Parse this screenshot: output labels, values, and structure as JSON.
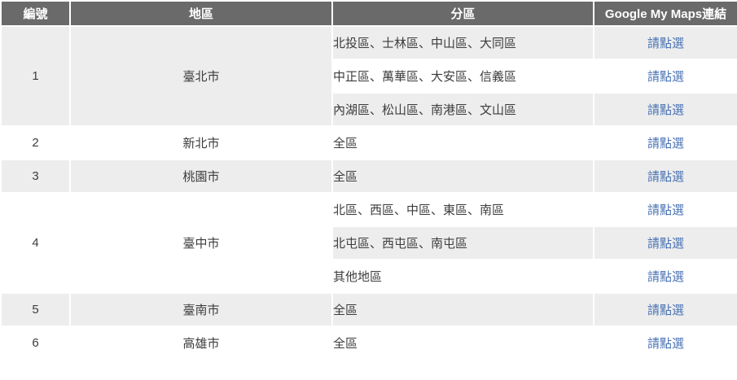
{
  "colors": {
    "header_bg": "#6a6a6a",
    "header_text": "#ffffff",
    "row_alt_bg": "#ededed",
    "row_bg": "#ffffff",
    "body_text": "#3c3c3c",
    "link_blue": "#4a73b4"
  },
  "table": {
    "headers": [
      "編號",
      "地區",
      "分區",
      "Google My Maps連結"
    ],
    "link_label": "請點選",
    "groups": [
      {
        "number": "1",
        "region": "臺北市",
        "subrows": [
          {
            "districts": "北投區、士林區、中山區、大同區",
            "link": "請點選"
          },
          {
            "districts": "中正區、萬華區、大安區、信義區",
            "link": "請點選"
          },
          {
            "districts": "內湖區、松山區、南港區、文山區",
            "link": "請點選"
          }
        ]
      },
      {
        "number": "2",
        "region": "新北市",
        "subrows": [
          {
            "districts": "全區",
            "link": "請點選"
          }
        ]
      },
      {
        "number": "3",
        "region": "桃園市",
        "subrows": [
          {
            "districts": "全區",
            "link": "請點選"
          }
        ]
      },
      {
        "number": "4",
        "region": "臺中市",
        "subrows": [
          {
            "districts": "北區、西區、中區、東區、南區",
            "link": "請點選"
          },
          {
            "districts": "北屯區、西屯區、南屯區",
            "link": "請點選"
          },
          {
            "districts": "其他地區",
            "link": "請點選"
          }
        ]
      },
      {
        "number": "5",
        "region": "臺南市",
        "subrows": [
          {
            "districts": "全區",
            "link": "請點選"
          }
        ]
      },
      {
        "number": "6",
        "region": "高雄市",
        "subrows": [
          {
            "districts": "全區",
            "link": "請點選"
          }
        ]
      }
    ]
  }
}
